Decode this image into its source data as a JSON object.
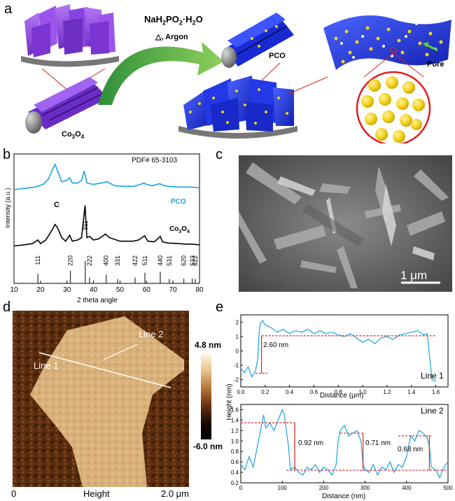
{
  "panels": {
    "a": {
      "label": "a",
      "reagent": "NaH2PO2·H2O",
      "reagent_parts": {
        "p1": "NaH",
        "s1": "2",
        "p2": "PO",
        "s2": "2",
        "p3": "·H",
        "s3": "2",
        "p4": "O"
      },
      "condition": "△, Argon",
      "precursor_label": {
        "main": "Co",
        "sub1": "3",
        "mid": "O",
        "sub2": "4"
      },
      "product_label": "PCO",
      "pore_label": "Pore",
      "colors": {
        "precursor": "#8a3fd6",
        "product": "#1f2fd9",
        "arrow": "#3aa63a",
        "nanoparticle": "#f2d21b",
        "callout": "#e01f1f"
      }
    },
    "b": {
      "label": "b",
      "pdf_label": "PDF# 65-3103",
      "ylabel": "Intensity (a.u.)",
      "xlabel": "2 theta angle",
      "series_labels": {
        "pco": "PCO",
        "co3o4_main": "Co",
        "co3o4_sub1": "3",
        "co3o4_mid": "O",
        "co3o4_sub2": "4"
      },
      "peak_marker": "C",
      "colors": {
        "pco": "#1aa3e0",
        "co3o4": "#000000"
      }
    },
    "c": {
      "label": "c",
      "scale_bar": "1 μm"
    },
    "d": {
      "label": "d",
      "line1": "Line 1",
      "line2": "Line 2",
      "colorbar_max": "4.8 nm",
      "colorbar_min": "-6.0 nm",
      "axis_left": "0",
      "axis_mid": "Height",
      "axis_right": "2.0 μm"
    },
    "e": {
      "label": "e",
      "ylabel": "Height (nm)",
      "top": {
        "name": "Line 1",
        "xlabel": "Distance (μm)",
        "step": "2.60 nm"
      },
      "bottom": {
        "name": "Line 2",
        "xlabel": "Distance (nm)",
        "steps": [
          "0.92 nm",
          "0.71 nm",
          "0.68 nm"
        ]
      }
    }
  },
  "chart_data": [
    {
      "type": "line",
      "panel": "b",
      "xlabel": "2 theta angle",
      "ylabel": "Intensity (a.u.)",
      "xlim": [
        10,
        80
      ],
      "x_ticks": [
        10,
        20,
        30,
        40,
        50,
        60,
        70,
        80
      ],
      "series": [
        {
          "name": "PCO",
          "x": [
            10,
            14,
            18,
            21,
            23,
            24.5,
            25.5,
            26.5,
            28,
            30,
            31,
            32,
            34,
            35.5,
            36.5,
            37.5,
            40,
            43,
            45,
            48,
            52,
            55,
            57,
            59,
            60,
            62,
            65,
            66,
            68,
            72,
            76,
            80
          ],
          "y": [
            0.62,
            0.64,
            0.66,
            0.7,
            0.78,
            0.92,
            1.0,
            0.9,
            0.74,
            0.76,
            0.8,
            0.72,
            0.72,
            0.76,
            0.9,
            0.72,
            0.7,
            0.72,
            0.74,
            0.68,
            0.67,
            0.67,
            0.69,
            0.72,
            0.7,
            0.68,
            0.71,
            0.69,
            0.67,
            0.66,
            0.66,
            0.65
          ]
        },
        {
          "name": "Co3O4",
          "x": [
            10,
            14,
            17,
            19,
            20,
            22,
            24,
            25.5,
            26.5,
            28,
            29.5,
            31,
            32,
            34,
            35.5,
            36.8,
            37.5,
            38.5,
            40,
            42,
            44.5,
            46,
            50,
            55,
            57,
            59.3,
            60.5,
            63,
            65.2,
            66,
            68,
            72,
            75,
            77,
            80
          ],
          "y": [
            0.1,
            0.12,
            0.14,
            0.2,
            0.14,
            0.2,
            0.34,
            0.46,
            0.4,
            0.24,
            0.18,
            0.28,
            0.18,
            0.2,
            0.24,
            0.78,
            0.24,
            0.26,
            0.2,
            0.22,
            0.3,
            0.24,
            0.18,
            0.18,
            0.2,
            0.27,
            0.18,
            0.17,
            0.26,
            0.17,
            0.15,
            0.14,
            0.13,
            0.13,
            0.12
          ]
        }
      ],
      "reference_peaks": [
        {
          "hkl": "111",
          "x": 19.0,
          "h": 0.35
        },
        {
          "hkl": "220",
          "x": 31.3,
          "h": 0.5
        },
        {
          "hkl": "311",
          "x": 36.9,
          "h": 1.0
        },
        {
          "hkl": "222",
          "x": 38.5,
          "h": 0.15
        },
        {
          "hkl": "400",
          "x": 44.8,
          "h": 0.3
        },
        {
          "hkl": "331",
          "x": 49.1,
          "h": 0.08
        },
        {
          "hkl": "422",
          "x": 55.7,
          "h": 0.15
        },
        {
          "hkl": "511",
          "x": 59.4,
          "h": 0.4
        },
        {
          "hkl": "440",
          "x": 65.2,
          "h": 0.45
        },
        {
          "hkl": "531",
          "x": 68.6,
          "h": 0.08
        },
        {
          "hkl": "620",
          "x": 74.1,
          "h": 0.1
        },
        {
          "hkl": "533",
          "x": 77.3,
          "h": 0.1
        },
        {
          "hkl": "622",
          "x": 78.4,
          "h": 0.08
        }
      ]
    },
    {
      "type": "line",
      "panel": "e-top",
      "name": "Line 1",
      "xlabel": "Distance (μm)",
      "xlim": [
        0,
        1.7
      ],
      "ylim": [
        -2.5,
        2.5
      ],
      "x_ticks": [
        0.0,
        0.2,
        0.4,
        0.6,
        0.8,
        1.0,
        1.2,
        1.4,
        1.6
      ],
      "y_ticks": [
        -2,
        -1,
        0,
        1,
        2
      ],
      "x": [
        0,
        0.03,
        0.06,
        0.09,
        0.12,
        0.14,
        0.15,
        0.16,
        0.18,
        0.2,
        0.25,
        0.3,
        0.35,
        0.4,
        0.45,
        0.5,
        0.55,
        0.6,
        0.65,
        0.7,
        0.75,
        0.8,
        0.85,
        0.9,
        0.95,
        1.0,
        1.05,
        1.1,
        1.15,
        1.2,
        1.25,
        1.3,
        1.35,
        1.4,
        1.45,
        1.5,
        1.53,
        1.55,
        1.57,
        1.6
      ],
      "y": [
        -1.2,
        -1.5,
        -1.1,
        -1.8,
        -1.4,
        -0.5,
        1.2,
        1.9,
        2.1,
        1.8,
        1.6,
        1.3,
        1.5,
        1.2,
        1.4,
        1.3,
        1.5,
        1.2,
        1.4,
        1.2,
        1.3,
        1.1,
        1.0,
        1.2,
        0.9,
        0.6,
        0.8,
        0.5,
        0.9,
        1.0,
        0.8,
        1.1,
        1.2,
        1.3,
        1.4,
        1.1,
        1.2,
        -0.5,
        -2.0,
        -2.1
      ],
      "levels": [
        {
          "y": 1.05
        },
        {
          "y": -1.55
        }
      ],
      "annotation": "2.60 nm"
    },
    {
      "type": "line",
      "panel": "e-bottom",
      "name": "Line 2",
      "xlabel": "Distance (nm)",
      "xlim": [
        0,
        500
      ],
      "ylim": [
        0.2,
        1.7
      ],
      "x_ticks": [
        0,
        100,
        200,
        300,
        400,
        500
      ],
      "y_ticks": [
        0.2,
        0.4,
        0.6,
        0.8,
        1.0,
        1.2,
        1.4,
        1.6
      ],
      "x": [
        0,
        10,
        20,
        30,
        40,
        50,
        55,
        60,
        70,
        80,
        90,
        100,
        105,
        110,
        115,
        120,
        130,
        140,
        150,
        160,
        170,
        180,
        190,
        200,
        210,
        220,
        230,
        235,
        240,
        250,
        260,
        270,
        280,
        290,
        295,
        300,
        310,
        320,
        330,
        340,
        350,
        360,
        370,
        380,
        390,
        400,
        410,
        420,
        430,
        440,
        450,
        455,
        460,
        470,
        480,
        490,
        500
      ],
      "y": [
        0.55,
        0.45,
        0.7,
        0.5,
        0.9,
        1.3,
        1.5,
        1.25,
        1.35,
        1.2,
        1.4,
        1.6,
        1.5,
        1.2,
        0.9,
        0.45,
        0.5,
        0.4,
        0.35,
        0.5,
        0.45,
        0.55,
        0.4,
        0.5,
        0.45,
        0.35,
        0.55,
        1.0,
        1.2,
        1.3,
        1.1,
        1.15,
        1.2,
        1.0,
        0.55,
        0.45,
        0.4,
        0.55,
        0.35,
        0.5,
        0.45,
        0.6,
        0.4,
        0.55,
        0.5,
        0.7,
        1.1,
        1.0,
        1.2,
        1.15,
        1.05,
        0.9,
        0.5,
        0.45,
        0.3,
        0.5,
        0.6
      ],
      "levels": [
        {
          "y": 1.35,
          "x": [
            0,
            130
          ]
        },
        {
          "y": 0.44,
          "x": [
            110,
            500
          ]
        },
        {
          "y": 1.15,
          "x": [
            240,
            300
          ]
        },
        {
          "y": 1.1,
          "x": [
            380,
            460
          ]
        }
      ],
      "annotations": [
        "0.92 nm",
        "0.71 nm",
        "0.68 nm"
      ]
    }
  ]
}
